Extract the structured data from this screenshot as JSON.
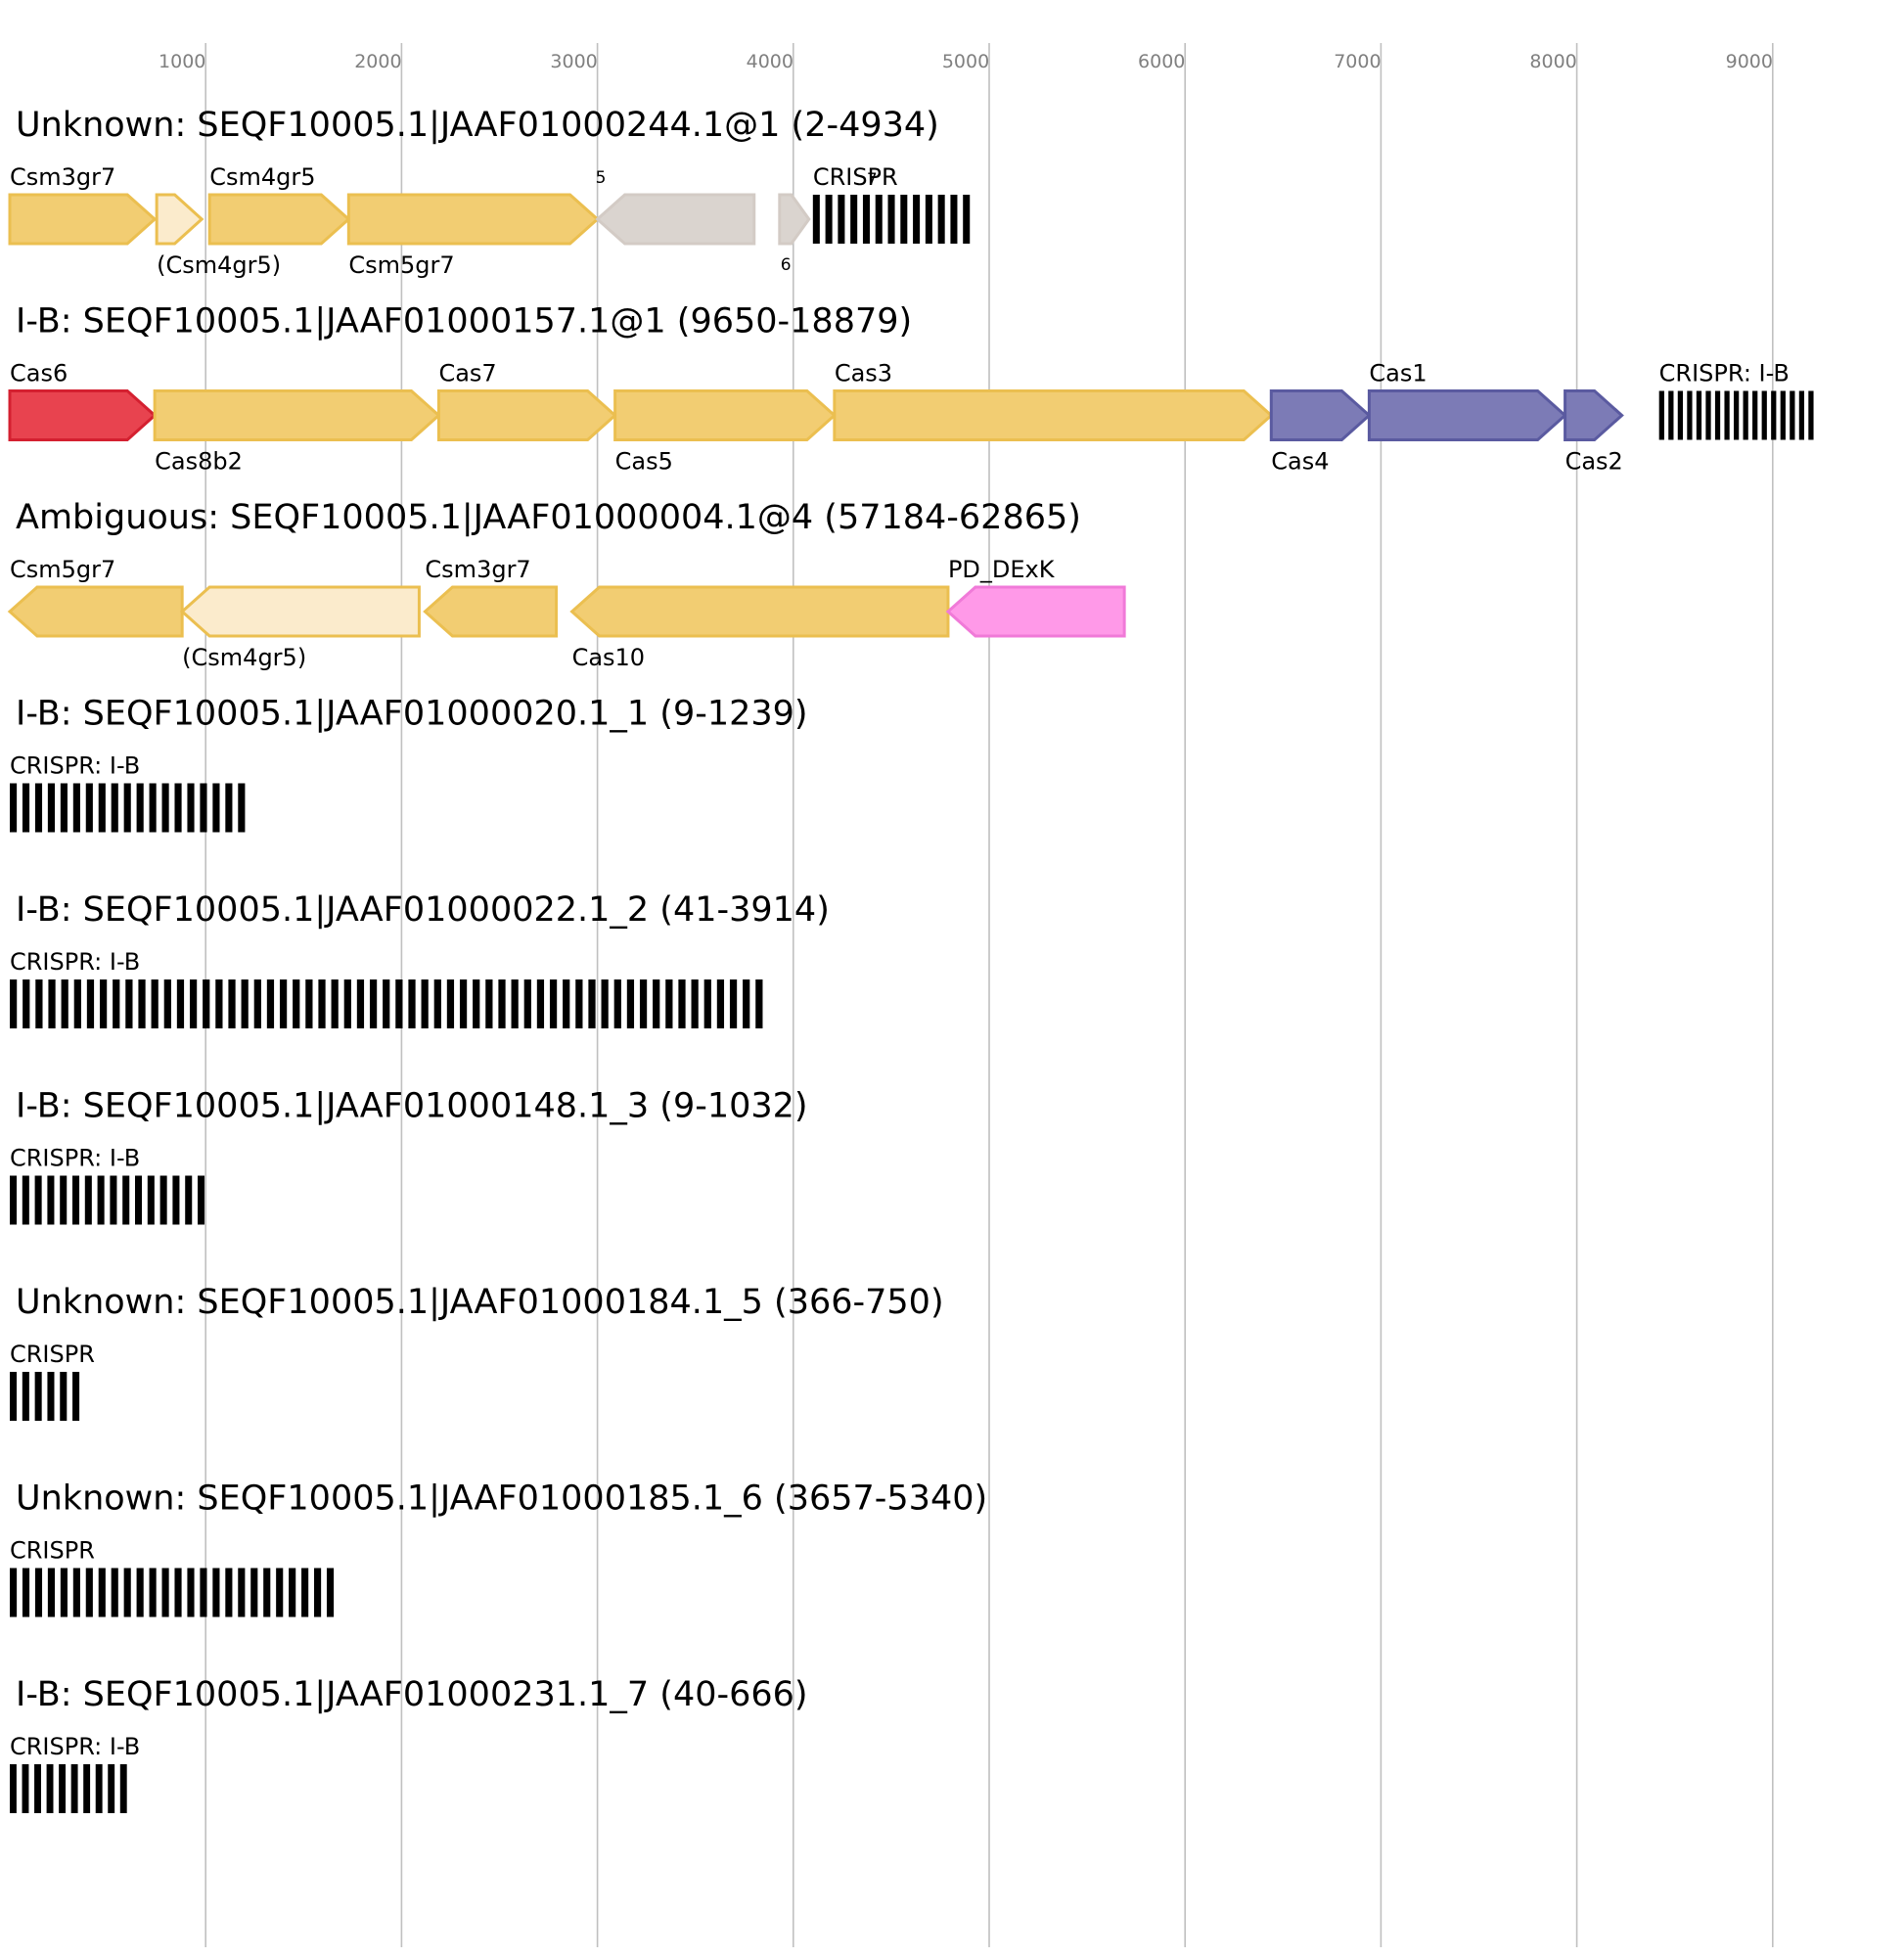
{
  "axis": {
    "ticks": [
      {
        "label": "1000",
        "value": 1000
      },
      {
        "label": "2000",
        "value": 2000
      },
      {
        "label": "3000",
        "value": 3000
      },
      {
        "label": "4000",
        "value": 4000
      },
      {
        "label": "5000",
        "value": 5000
      },
      {
        "label": "6000",
        "value": 6000
      },
      {
        "label": "7000",
        "value": 7000
      },
      {
        "label": "8000",
        "value": 8000
      },
      {
        "label": "9000",
        "value": 9000
      }
    ]
  },
  "colors": {
    "yellow_fill": "#f2cd72",
    "yellow_stroke": "#ebbf50",
    "pale_fill": "#fbebcc",
    "pale_stroke": "#ebbf50",
    "grey_fill": "#dad4cf",
    "grey_stroke": "#d3cbc5",
    "red_fill": "#e8434f",
    "red_stroke": "#d42030",
    "blue_fill": "#7c7bb6",
    "blue_stroke": "#5a5aa0",
    "pink_fill": "#ff99e8",
    "pink_stroke": "#f07ad8",
    "crispr": "#000000"
  },
  "tracks": [
    {
      "title": "Unknown: SEQF10005.1|JAAF01000244.1@1 (2-4934)",
      "features": [
        {
          "kind": "gene",
          "start": 0,
          "end": 740,
          "strand": "+",
          "color": "yellow",
          "label": "Csm3gr7",
          "label_pos": "above"
        },
        {
          "kind": "gene",
          "start": 750,
          "end": 980,
          "strand": "+",
          "color": "pale",
          "label": "(Csm4gr5)",
          "label_pos": "below"
        },
        {
          "kind": "gene",
          "start": 1020,
          "end": 1730,
          "strand": "+",
          "color": "yellow",
          "label": "Csm4gr5",
          "label_pos": "above"
        },
        {
          "kind": "gene",
          "start": 1730,
          "end": 3000,
          "strand": "+",
          "color": "yellow",
          "label": "Csm5gr7",
          "label_pos": "below"
        },
        {
          "kind": "gene",
          "start": 3000,
          "end": 3800,
          "strand": "-",
          "color": "grey",
          "label": "5",
          "label_pos": "above-small"
        },
        {
          "kind": "gene",
          "start": 3930,
          "end": 4080,
          "strand": "+",
          "color": "grey",
          "label": "6",
          "label_pos": "below-small"
        },
        {
          "kind": "crispr",
          "start": 4100,
          "end": 4930,
          "label": "CRISPR",
          "label_pos": "above",
          "extra_label": "7",
          "repeats": 13
        }
      ]
    },
    {
      "title": "I-B: SEQF10005.1|JAAF01000157.1@1 (9650-18879)",
      "features": [
        {
          "kind": "gene",
          "start": 0,
          "end": 740,
          "strand": "+",
          "color": "red",
          "label": "Cas6",
          "label_pos": "above"
        },
        {
          "kind": "gene",
          "start": 740,
          "end": 2190,
          "strand": "+",
          "color": "yellow",
          "label": "Cas8b2",
          "label_pos": "below"
        },
        {
          "kind": "gene",
          "start": 2190,
          "end": 3090,
          "strand": "+",
          "color": "yellow",
          "label": "Cas7",
          "label_pos": "above"
        },
        {
          "kind": "gene",
          "start": 3090,
          "end": 4210,
          "strand": "+",
          "color": "yellow",
          "label": "Cas5",
          "label_pos": "below"
        },
        {
          "kind": "gene",
          "start": 4210,
          "end": 6440,
          "strand": "+",
          "color": "yellow",
          "label": "Cas3",
          "label_pos": "above"
        },
        {
          "kind": "gene",
          "start": 6440,
          "end": 6940,
          "strand": "+",
          "color": "blue",
          "label": "Cas4",
          "label_pos": "below"
        },
        {
          "kind": "gene",
          "start": 6940,
          "end": 7940,
          "strand": "+",
          "color": "blue",
          "label": "Cas1",
          "label_pos": "above"
        },
        {
          "kind": "gene",
          "start": 7940,
          "end": 8230,
          "strand": "+",
          "color": "blue",
          "label": "Cas2",
          "label_pos": "below"
        },
        {
          "kind": "crispr",
          "start": 8420,
          "end": 9230,
          "label": "CRISPR: I-B",
          "label_pos": "above",
          "repeats": 17
        }
      ]
    },
    {
      "title": "Ambiguous: SEQF10005.1|JAAF01000004.1@4 (57184-62865)",
      "features": [
        {
          "kind": "gene",
          "start": 0,
          "end": 880,
          "strand": "-",
          "color": "yellow",
          "label": "Csm5gr7",
          "label_pos": "above"
        },
        {
          "kind": "gene",
          "start": 880,
          "end": 2090,
          "strand": "-",
          "color": "pale",
          "label": "(Csm4gr5)",
          "label_pos": "below"
        },
        {
          "kind": "gene",
          "start": 2120,
          "end": 2790,
          "strand": "-",
          "color": "yellow",
          "label": "Csm3gr7",
          "label_pos": "above"
        },
        {
          "kind": "gene",
          "start": 2870,
          "end": 4790,
          "strand": "-",
          "color": "yellow",
          "label": "Cas10",
          "label_pos": "below"
        },
        {
          "kind": "gene",
          "start": 4790,
          "end": 5690,
          "strand": "-",
          "color": "pink",
          "label": "PD_DExK",
          "label_pos": "above"
        }
      ]
    },
    {
      "title": "I-B: SEQF10005.1|JAAF01000020.1_1 (9-1239)",
      "features": [
        {
          "kind": "crispr",
          "start": 0,
          "end": 1230,
          "label": "CRISPR: I-B",
          "label_pos": "above",
          "repeats": 19
        }
      ]
    },
    {
      "title": "I-B: SEQF10005.1|JAAF01000022.1_2 (41-3914)",
      "features": [
        {
          "kind": "crispr",
          "start": 0,
          "end": 3873,
          "label": "CRISPR: I-B",
          "label_pos": "above",
          "repeats": 59
        }
      ]
    },
    {
      "title": "I-B: SEQF10005.1|JAAF01000148.1_3 (9-1032)",
      "features": [
        {
          "kind": "crispr",
          "start": 0,
          "end": 1023,
          "label": "CRISPR: I-B",
          "label_pos": "above",
          "repeats": 16
        }
      ]
    },
    {
      "title": "Unknown: SEQF10005.1|JAAF01000184.1_5 (366-750)",
      "features": [
        {
          "kind": "crispr",
          "start": 0,
          "end": 384,
          "label": "CRISPR",
          "label_pos": "above",
          "repeats": 6
        }
      ]
    },
    {
      "title": "Unknown: SEQF10005.1|JAAF01000185.1_6 (3657-5340)",
      "features": [
        {
          "kind": "crispr",
          "start": 0,
          "end": 1683,
          "label": "CRISPR",
          "label_pos": "above",
          "repeats": 26
        }
      ]
    },
    {
      "title": "I-B: SEQF10005.1|JAAF01000231.1_7 (40-666)",
      "features": [
        {
          "kind": "crispr",
          "start": 0,
          "end": 626,
          "label": "CRISPR: I-B",
          "label_pos": "above",
          "repeats": 10
        }
      ]
    }
  ]
}
